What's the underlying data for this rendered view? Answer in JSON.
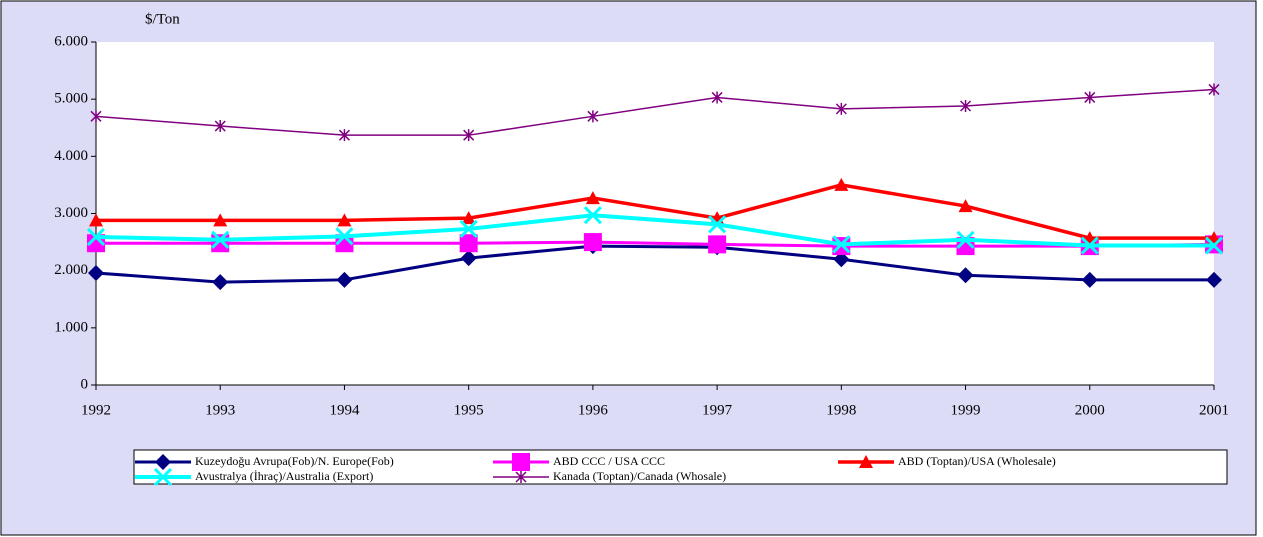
{
  "chart_data": {
    "type": "line",
    "y_axis_label": "$/Ton",
    "categories": [
      "1992",
      "1993",
      "1994",
      "1995",
      "1996",
      "1997",
      "1998",
      "1999",
      "2000",
      "2001"
    ],
    "series": [
      {
        "name": "Kuzeydoğu Avrupa(Fob)/N. Europe(Fob)",
        "color": "#000080",
        "marker": "diamond",
        "values": [
          1960,
          1800,
          1840,
          2220,
          2430,
          2410,
          2200,
          1920,
          1840,
          1840
        ]
      },
      {
        "name": "ABD CCC / USA CCC",
        "color": "#ff00ff",
        "marker": "square",
        "values": [
          2480,
          2480,
          2480,
          2480,
          2500,
          2460,
          2430,
          2430,
          2430,
          2460
        ]
      },
      {
        "name": "ABD (Toptan)/USA (Wholesale)",
        "color": "#ff0000",
        "marker": "triangle",
        "values": [
          2880,
          2880,
          2880,
          2920,
          3270,
          2920,
          3500,
          3130,
          2570,
          2570
        ]
      },
      {
        "name": "Avustralya (İhraç)/Australia (Export)",
        "color": "#00ffff",
        "marker": "x",
        "values": [
          2590,
          2540,
          2600,
          2730,
          2970,
          2810,
          2460,
          2540,
          2440,
          2440
        ]
      },
      {
        "name": "Kanada (Toptan)/Canada (Whosale)",
        "color": "#800080",
        "marker": "star",
        "values": [
          4700,
          4530,
          4370,
          4370,
          4700,
          5030,
          4830,
          4880,
          5030,
          5170
        ]
      }
    ],
    "ylim": [
      0,
      6000
    ],
    "yticks": [
      0,
      {
        "value": 1000,
        "label": "1.000"
      },
      {
        "value": 2000,
        "label": "2.000"
      },
      {
        "value": 3000,
        "label": "3.000"
      },
      {
        "value": 4000,
        "label": "4.000"
      },
      {
        "value": 5000,
        "label": "5.000"
      },
      {
        "value": 6000,
        "label": "6.000"
      }
    ],
    "legend": "bottom"
  }
}
